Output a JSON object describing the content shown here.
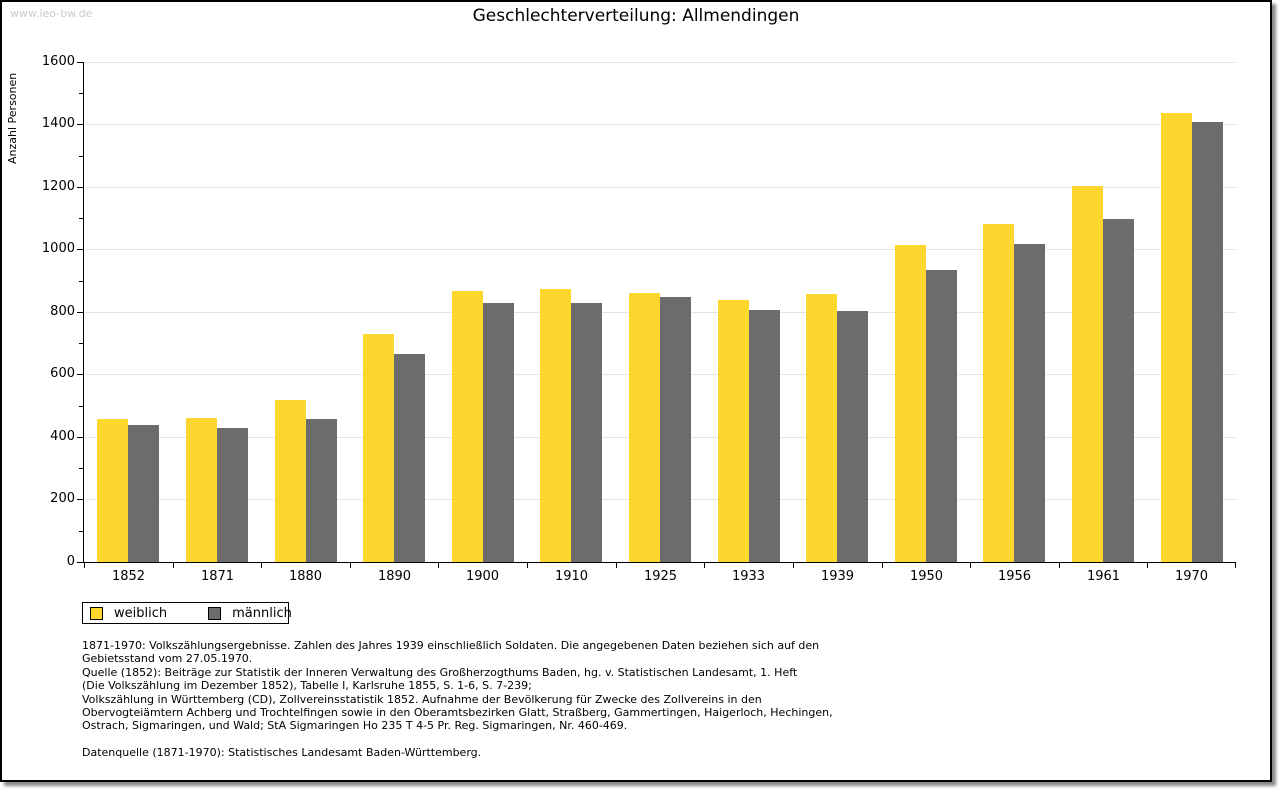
{
  "page": {
    "watermark": "www.leo-bw.de",
    "title": "Geschlechterverteilung: Allmendingen"
  },
  "chart_data": {
    "type": "bar",
    "title": "Geschlechterverteilung: Allmendingen",
    "xlabel": "",
    "ylabel": "Anzahl Personen",
    "ylim": [
      0,
      1600
    ],
    "ytick_step": 200,
    "minor_tick_step": 100,
    "grid": true,
    "legend_position": "bottom-left",
    "categories": [
      "1852",
      "1871",
      "1880",
      "1890",
      "1900",
      "1910",
      "1925",
      "1933",
      "1939",
      "1950",
      "1956",
      "1961",
      "1970"
    ],
    "series": [
      {
        "name": "weiblich",
        "color": "#fdd62e",
        "values": [
          457,
          462,
          517,
          729,
          866,
          872,
          862,
          837,
          857,
          1013,
          1081,
          1204,
          1438
        ]
      },
      {
        "name": "männlich",
        "color": "#6c6c6c",
        "values": [
          439,
          429,
          457,
          665,
          828,
          828,
          848,
          806,
          803,
          933,
          1016,
          1096,
          1409
        ]
      }
    ]
  },
  "legend": {
    "items": [
      {
        "label": "weiblich",
        "color": "#fdd62e"
      },
      {
        "label": "männlich",
        "color": "#6c6c6c"
      }
    ]
  },
  "footer": {
    "lines": [
      "1871-1970: Volkszählungsergebnisse. Zahlen des Jahres 1939 einschließlich Soldaten. Die angegebenen Daten beziehen sich auf den",
      "Gebietsstand vom 27.05.1970.",
      "Quelle (1852): Beiträge zur Statistik der Inneren Verwaltung des Großherzogthums Baden, hg. v. Statistischen Landesamt, 1. Heft",
      "(Die Volkszählung im Dezember 1852), Tabelle I, Karlsruhe 1855, S. 1-6, S. 7-239;",
      "Volkszählung in Württemberg (CD), Zollvereinsstatistik 1852. Aufnahme der Bevölkerung für Zwecke des Zollvereins in den",
      "Obervogteiämtern Achberg und Trochtelfingen sowie in den Oberamtsbezirken Glatt, Straßberg, Gammertingen, Haigerloch, Hechingen,",
      "Ostrach, Sigmaringen, und Wald; StA Sigmaringen Ho 235 T 4-5 Pr. Reg. Sigmaringen, Nr. 460-469."
    ],
    "source": "Datenquelle (1871-1970): Statistisches Landesamt Baden-Württemberg."
  }
}
